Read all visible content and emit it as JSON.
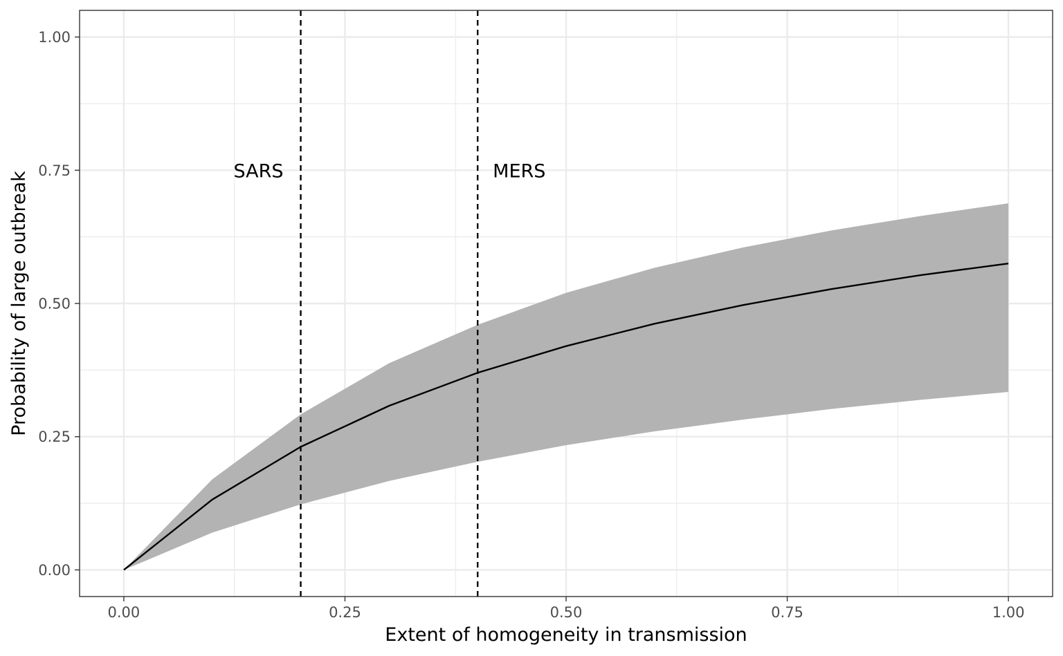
{
  "chart_data": {
    "type": "line",
    "xlabel": "Extent of homogeneity in transmission",
    "ylabel": "Probability of large outbreak",
    "xlim": [
      -0.05,
      1.05
    ],
    "ylim": [
      -0.05,
      1.05
    ],
    "x_ticks": [
      0,
      0.25,
      0.5,
      0.75,
      1
    ],
    "x_tick_labels": [
      "0.00",
      "0.25",
      "0.50",
      "0.75",
      "1.00"
    ],
    "y_ticks": [
      0,
      0.25,
      0.5,
      0.75,
      1
    ],
    "y_tick_labels": [
      "0.00",
      "0.25",
      "0.50",
      "0.75",
      "1.00"
    ],
    "x_minor_ticks": [
      0.125,
      0.375,
      0.625,
      0.875
    ],
    "y_minor_ticks": [
      0.125,
      0.375,
      0.625,
      0.875
    ],
    "grid": true,
    "series": [
      {
        "x": [
          0,
          0.1,
          0.2,
          0.3,
          0.4,
          0.5,
          0.6,
          0.7,
          0.8,
          0.9,
          1.0
        ],
        "y": [
          0.0,
          0.132,
          0.231,
          0.308,
          0.37,
          0.42,
          0.462,
          0.497,
          0.527,
          0.553,
          0.575
        ],
        "color": "#000000"
      }
    ],
    "ribbon": {
      "x": [
        0,
        0.1,
        0.2,
        0.3,
        0.4,
        0.5,
        0.6,
        0.7,
        0.8,
        0.9,
        1.0
      ],
      "lower": [
        0.0,
        0.07,
        0.123,
        0.167,
        0.203,
        0.234,
        0.26,
        0.282,
        0.302,
        0.319,
        0.334
      ],
      "upper": [
        0.0,
        0.17,
        0.292,
        0.388,
        0.46,
        0.52,
        0.567,
        0.605,
        0.637,
        0.664,
        0.688
      ],
      "color": "#b3b3b3"
    },
    "vlines": [
      {
        "x": 0.2,
        "label": "SARS",
        "label_side": "left",
        "label_y": 0.75
      },
      {
        "x": 0.4,
        "label": "MERS",
        "label_side": "right",
        "label_y": 0.75
      }
    ]
  }
}
